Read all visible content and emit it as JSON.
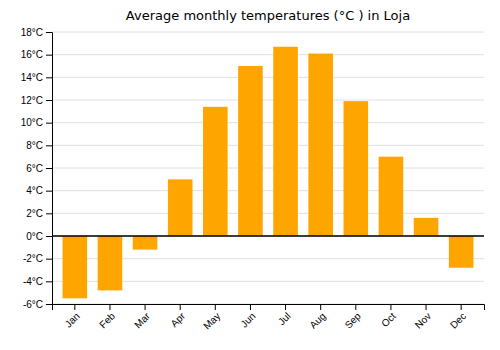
{
  "chart_data": {
    "type": "bar",
    "title": "Average monthly temperatures (°C ) in Loja",
    "categories": [
      "Jan",
      "Feb",
      "Mar",
      "Apr",
      "May",
      "Jun",
      "Jul",
      "Aug",
      "Sep",
      "Oct",
      "Nov",
      "Dec"
    ],
    "values": [
      -5.5,
      -4.8,
      -1.2,
      5.0,
      11.4,
      15.0,
      16.7,
      16.1,
      11.9,
      7.0,
      1.6,
      -2.8
    ],
    "color": "#FFA500",
    "ylim": [
      -6,
      18
    ],
    "yticks": [
      {
        "value": -6,
        "label": "-6°C"
      },
      {
        "value": -4,
        "label": "-4°C"
      },
      {
        "value": -2,
        "label": "-2°C"
      },
      {
        "value": 0,
        "label": "0°C"
      },
      {
        "value": 2,
        "label": "2°C"
      },
      {
        "value": 4,
        "label": "4°C"
      },
      {
        "value": 6,
        "label": "6°C"
      },
      {
        "value": 8,
        "label": "8°C"
      },
      {
        "value": 10,
        "label": "10°C"
      },
      {
        "value": 12,
        "label": "12°C"
      },
      {
        "value": 14,
        "label": "14°C"
      },
      {
        "value": 16,
        "label": "16°C"
      },
      {
        "value": 18,
        "label": "18°C"
      }
    ],
    "grid": true
  }
}
